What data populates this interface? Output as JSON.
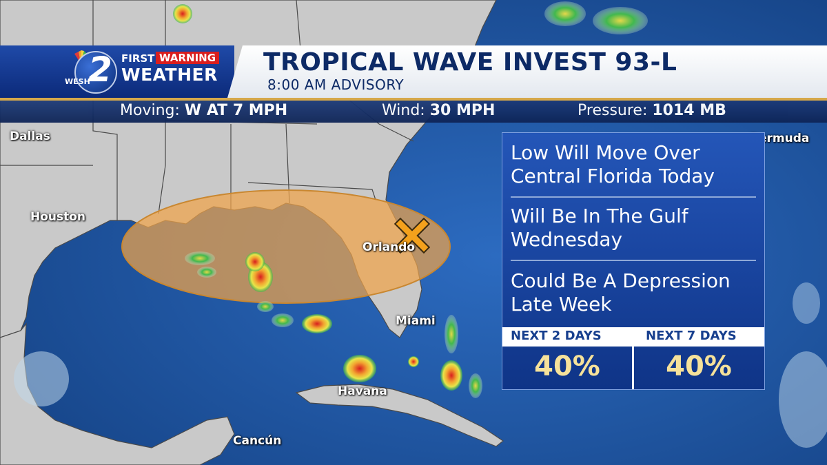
{
  "header": {
    "logo_number": "2",
    "logo_station": "WESH",
    "brand_first": "FIRST",
    "brand_warning": "WARNING",
    "brand_weather": "WEATHER",
    "title": "TROPICAL WAVE INVEST 93-L",
    "subtitle": "8:00 AM  ADVISORY"
  },
  "stats": {
    "moving_label": "Moving:",
    "moving_value": "W AT 7 MPH",
    "wind_label": "Wind:",
    "wind_value": "30 MPH",
    "pressure_label": "Pressure:",
    "pressure_value": "1014 MB"
  },
  "cities": {
    "dallas": "Dallas",
    "houston": "Houston",
    "orlando": "Orlando",
    "miami": "Miami",
    "havana": "Havana",
    "cancun": "Cancún",
    "bermuda": "Bermuda"
  },
  "info_panel": {
    "items": [
      {
        "line1": "Low Will Move Over",
        "line2": "Central Florida Today"
      },
      {
        "line1": "Will Be In The Gulf",
        "line2": "Wednesday"
      },
      {
        "line1": "Could Be A Depression",
        "line2": "Late Week"
      }
    ],
    "outlook": [
      {
        "label": "NEXT 2 DAYS",
        "value": "40%"
      },
      {
        "label": "NEXT 7 DAYS",
        "value": "40%"
      }
    ]
  },
  "colors": {
    "ocean": "#1a4f96",
    "land": "#c9c9c9",
    "development_area": "#f0a44a",
    "storm_marker": "#f4a11c",
    "banner_navy": "#0d2a66",
    "outlook_value": "#f6e29a",
    "accent_gold": "#d6a84a"
  },
  "icons": {
    "storm_center": "x-marker-icon",
    "network_logo": "peacock-icon"
  }
}
